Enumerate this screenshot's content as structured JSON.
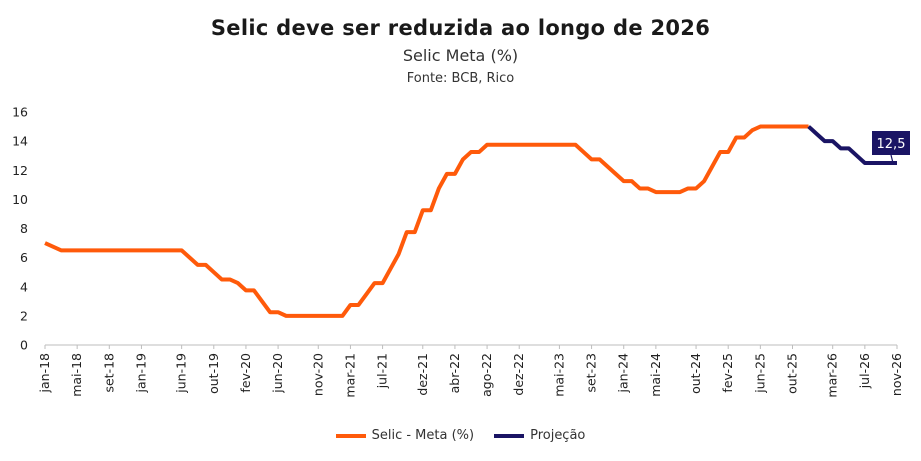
{
  "header": {
    "title": "Selic deve ser reduzida ao longo de 2026",
    "subtitle": "Selic Meta (%)",
    "source": "Fonte: BCB, Rico"
  },
  "colors": {
    "selic": "#FF5A0A",
    "projecao": "#1A1464",
    "label_bg": "#1A1464"
  },
  "chart_data": {
    "type": "line",
    "title": "Selic deve ser reduzida ao longo de 2026",
    "subtitle": "Selic Meta (%)",
    "ylim": [
      0,
      16
    ],
    "yticks": [
      "0",
      "2",
      "4",
      "6",
      "8",
      "10",
      "12",
      "14",
      "16"
    ],
    "xticks": [
      "jan-18",
      "mai-18",
      "set-18",
      "jan-19",
      "jun-19",
      "out-19",
      "fev-20",
      "jun-20",
      "nov-20",
      "mar-21",
      "jul-21",
      "dez-21",
      "abr-22",
      "ago-22",
      "dez-22",
      "mai-23",
      "set-23",
      "jan-24",
      "mai-24",
      "out-24",
      "fev-25",
      "jun-25",
      "out-25",
      "mar-26",
      "jul-26",
      "nov-26"
    ],
    "grid": false,
    "legend_position": "bottom",
    "annotation": "12,5",
    "series": [
      {
        "name": "Selic - Meta (%)",
        "points": [
          [
            "2018-01",
            7.0
          ],
          [
            "2018-02",
            6.75
          ],
          [
            "2018-03",
            6.5
          ],
          [
            "2018-04",
            6.5
          ],
          [
            "2018-05",
            6.5
          ],
          [
            "2018-06",
            6.5
          ],
          [
            "2018-07",
            6.5
          ],
          [
            "2018-08",
            6.5
          ],
          [
            "2018-09",
            6.5
          ],
          [
            "2018-10",
            6.5
          ],
          [
            "2018-11",
            6.5
          ],
          [
            "2018-12",
            6.5
          ],
          [
            "2019-01",
            6.5
          ],
          [
            "2019-02",
            6.5
          ],
          [
            "2019-03",
            6.5
          ],
          [
            "2019-04",
            6.5
          ],
          [
            "2019-05",
            6.5
          ],
          [
            "2019-06",
            6.5
          ],
          [
            "2019-07",
            6.0
          ],
          [
            "2019-08",
            5.5
          ],
          [
            "2019-09",
            5.5
          ],
          [
            "2019-10",
            5.0
          ],
          [
            "2019-11",
            4.5
          ],
          [
            "2019-12",
            4.5
          ],
          [
            "2020-01",
            4.25
          ],
          [
            "2020-02",
            3.75
          ],
          [
            "2020-03",
            3.75
          ],
          [
            "2020-04",
            3.0
          ],
          [
            "2020-05",
            2.25
          ],
          [
            "2020-06",
            2.25
          ],
          [
            "2020-07",
            2.0
          ],
          [
            "2020-08",
            2.0
          ],
          [
            "2020-09",
            2.0
          ],
          [
            "2020-10",
            2.0
          ],
          [
            "2020-11",
            2.0
          ],
          [
            "2020-12",
            2.0
          ],
          [
            "2021-01",
            2.0
          ],
          [
            "2021-02",
            2.0
          ],
          [
            "2021-03",
            2.75
          ],
          [
            "2021-04",
            2.75
          ],
          [
            "2021-05",
            3.5
          ],
          [
            "2021-06",
            4.25
          ],
          [
            "2021-07",
            4.25
          ],
          [
            "2021-08",
            5.25
          ],
          [
            "2021-09",
            6.25
          ],
          [
            "2021-10",
            7.75
          ],
          [
            "2021-11",
            7.75
          ],
          [
            "2021-12",
            9.25
          ],
          [
            "2022-01",
            9.25
          ],
          [
            "2022-02",
            10.75
          ],
          [
            "2022-03",
            11.75
          ],
          [
            "2022-04",
            11.75
          ],
          [
            "2022-05",
            12.75
          ],
          [
            "2022-06",
            13.25
          ],
          [
            "2022-07",
            13.25
          ],
          [
            "2022-08",
            13.75
          ],
          [
            "2022-09",
            13.75
          ],
          [
            "2022-10",
            13.75
          ],
          [
            "2022-11",
            13.75
          ],
          [
            "2022-12",
            13.75
          ],
          [
            "2023-01",
            13.75
          ],
          [
            "2023-02",
            13.75
          ],
          [
            "2023-03",
            13.75
          ],
          [
            "2023-04",
            13.75
          ],
          [
            "2023-05",
            13.75
          ],
          [
            "2023-06",
            13.75
          ],
          [
            "2023-07",
            13.75
          ],
          [
            "2023-08",
            13.25
          ],
          [
            "2023-09",
            12.75
          ],
          [
            "2023-10",
            12.75
          ],
          [
            "2023-11",
            12.25
          ],
          [
            "2023-12",
            11.75
          ],
          [
            "2024-01",
            11.25
          ],
          [
            "2024-02",
            11.25
          ],
          [
            "2024-03",
            10.75
          ],
          [
            "2024-04",
            10.75
          ],
          [
            "2024-05",
            10.5
          ],
          [
            "2024-06",
            10.5
          ],
          [
            "2024-07",
            10.5
          ],
          [
            "2024-08",
            10.5
          ],
          [
            "2024-09",
            10.75
          ],
          [
            "2024-10",
            10.75
          ],
          [
            "2024-11",
            11.25
          ],
          [
            "2024-12",
            12.25
          ],
          [
            "2025-01",
            13.25
          ],
          [
            "2025-02",
            13.25
          ],
          [
            "2025-03",
            14.25
          ],
          [
            "2025-04",
            14.25
          ],
          [
            "2025-05",
            14.75
          ],
          [
            "2025-06",
            15.0
          ],
          [
            "2025-07",
            15.0
          ],
          [
            "2025-08",
            15.0
          ],
          [
            "2025-09",
            15.0
          ],
          [
            "2025-10",
            15.0
          ],
          [
            "2025-11",
            15.0
          ],
          [
            "2025-12",
            15.0
          ]
        ]
      },
      {
        "name": "Projeção",
        "points": [
          [
            "2025-12",
            15.0
          ],
          [
            "2026-01",
            14.5
          ],
          [
            "2026-02",
            14.0
          ],
          [
            "2026-03",
            14.0
          ],
          [
            "2026-04",
            13.5
          ],
          [
            "2026-05",
            13.5
          ],
          [
            "2026-06",
            13.0
          ],
          [
            "2026-07",
            12.5
          ],
          [
            "2026-08",
            12.5
          ],
          [
            "2026-09",
            12.5
          ],
          [
            "2026-10",
            12.5
          ],
          [
            "2026-11",
            12.5
          ]
        ]
      }
    ]
  }
}
